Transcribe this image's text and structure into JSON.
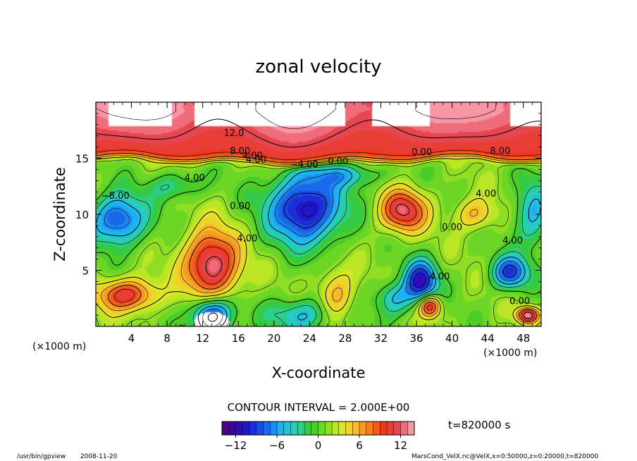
{
  "chart_data": {
    "type": "heatmap",
    "title": "zonal velocity",
    "xlabel": "X-coordinate",
    "ylabel": "Z-coordinate",
    "x_unit": "(×1000 m)",
    "z_unit": "(×1000 m)",
    "xlim": [
      0,
      50
    ],
    "ylim": [
      0,
      20
    ],
    "x_ticks": [
      4,
      8,
      12,
      16,
      20,
      24,
      28,
      32,
      36,
      40,
      44,
      48
    ],
    "x_tick_labels": [
      "4",
      "8",
      "12",
      "16",
      "20",
      "24",
      "28",
      "32",
      "36",
      "40",
      "44",
      "48"
    ],
    "y_ticks": [
      5,
      10,
      15
    ],
    "y_tick_labels": [
      "5",
      "10",
      "15"
    ],
    "contour_interval_text": "CONTOUR INTERVAL = 2.000E+00",
    "contour_interval": 2.0,
    "time_text": "t=820000 s",
    "colorbar": {
      "min": -14,
      "max": 14,
      "ticks": [
        -12,
        -6,
        0,
        6,
        12
      ],
      "tick_labels": [
        "−12",
        "−6",
        "0",
        "6",
        "12"
      ]
    },
    "contour_labels": [
      {
        "text": "12.0",
        "x": 15.5,
        "y": 17.2
      },
      {
        "text": "8.00",
        "x": 16.2,
        "y": 15.6
      },
      {
        "text": "4.00",
        "x": 18.0,
        "y": 14.8
      },
      {
        "text": "4.00",
        "x": 17.6,
        "y": 15.2
      },
      {
        "text": "−4.00",
        "x": 23.4,
        "y": 14.4
      },
      {
        "text": "0.00",
        "x": 27.2,
        "y": 14.7
      },
      {
        "text": "0.00",
        "x": 36.6,
        "y": 15.5
      },
      {
        "text": "8.00",
        "x": 45.4,
        "y": 15.6
      },
      {
        "text": "4.00",
        "x": 11.1,
        "y": 13.2
      },
      {
        "text": "−8.00",
        "x": 2.2,
        "y": 11.6
      },
      {
        "text": "0.00",
        "x": 16.2,
        "y": 10.7
      },
      {
        "text": "4.00",
        "x": 17.0,
        "y": 7.8
      },
      {
        "text": "4.00",
        "x": 43.8,
        "y": 11.8
      },
      {
        "text": "0.00",
        "x": 40.0,
        "y": 8.8
      },
      {
        "text": "4.00",
        "x": 46.8,
        "y": 7.6
      },
      {
        "text": "4.00",
        "x": 38.6,
        "y": 4.4
      },
      {
        "text": "0.00",
        "x": 47.6,
        "y": 2.2
      }
    ],
    "features": [
      {
        "x": 13,
        "z": 5.5,
        "value": 12.5,
        "sx": 3.0,
        "sz": 3.0
      },
      {
        "x": 23.5,
        "z": 10.5,
        "value": -13,
        "sx": 4.0,
        "sz": 3.0
      },
      {
        "x": 34.5,
        "z": 10.3,
        "value": 11,
        "sx": 2.5,
        "sz": 1.8
      },
      {
        "x": 3.5,
        "z": 2.8,
        "value": 10,
        "sx": 3.2,
        "sz": 1.4
      },
      {
        "x": 2.5,
        "z": 9.5,
        "value": -10,
        "sx": 3.0,
        "sz": 2.2
      },
      {
        "x": 36.5,
        "z": 4.0,
        "value": -12,
        "sx": 1.8,
        "sz": 1.8
      },
      {
        "x": 46.5,
        "z": 4.8,
        "value": -10,
        "sx": 2.0,
        "sz": 1.4
      },
      {
        "x": 13,
        "z": 1.0,
        "value": -12,
        "sx": 2.2,
        "sz": 1.6
      },
      {
        "x": 37.5,
        "z": 1.8,
        "value": 11,
        "sx": 1.2,
        "sz": 1.0
      },
      {
        "x": 27,
        "z": 2.5,
        "value": 6,
        "sx": 2.0,
        "sz": 2.5
      },
      {
        "x": 42.5,
        "z": 10.0,
        "value": 5,
        "sx": 2.2,
        "sz": 1.4
      },
      {
        "x": 23.5,
        "z": 1.0,
        "value": -6,
        "sx": 4.0,
        "sz": 1.5
      },
      {
        "x": 33.5,
        "z": 2.5,
        "value": -6,
        "sx": 2.0,
        "sz": 1.5
      },
      {
        "x": 49,
        "z": 10.0,
        "value": -6,
        "sx": 2.0,
        "sz": 3.0
      },
      {
        "x": 28,
        "z": 13.5,
        "value": -5,
        "sx": 4.0,
        "sz": 1.0
      },
      {
        "x": 48.5,
        "z": 1.0,
        "value": 12,
        "sx": 1.2,
        "sz": 0.7
      },
      {
        "x": 9,
        "z": 12.5,
        "value": -4,
        "sx": 3.0,
        "sz": 1.2
      }
    ],
    "upper_layer": {
      "interface_z": 14.8,
      "base_value": 10,
      "top_value": 14
    }
  },
  "footer": {
    "program": "/usr/bin/gpview",
    "date": "2008-11-20",
    "source": "MarsCond_VelX.nc@VelX,x=0:50000,z=0:20000,t=820000"
  }
}
